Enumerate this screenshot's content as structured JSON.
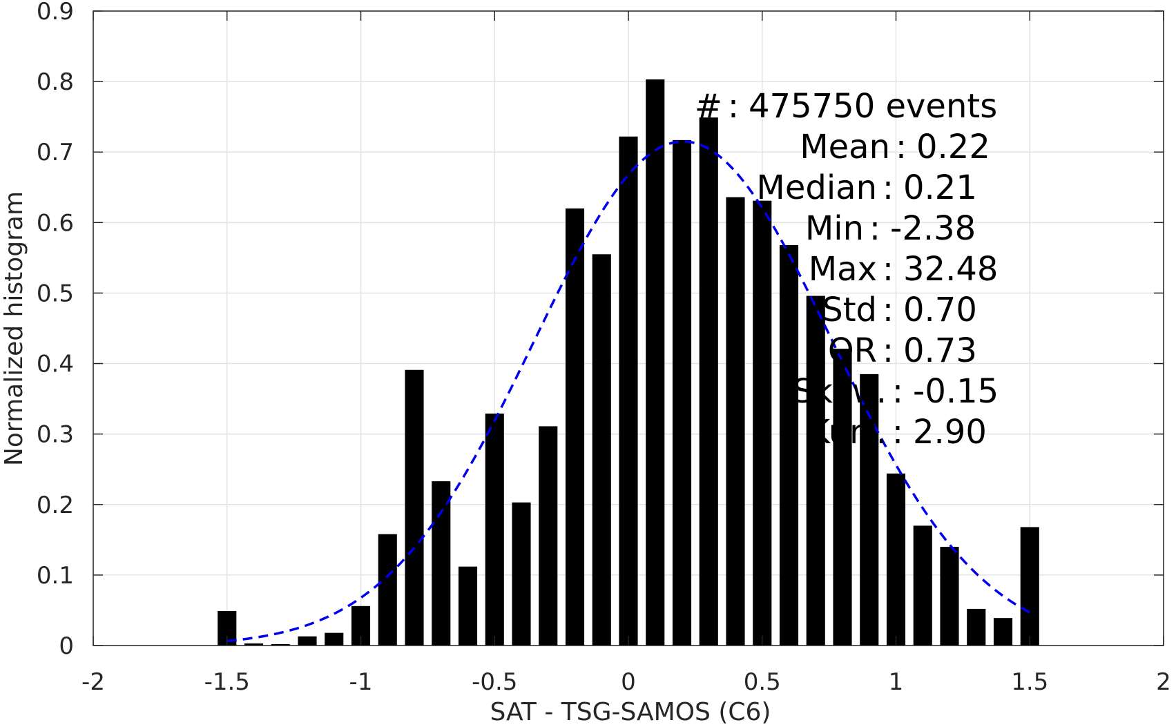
{
  "chart_data": {
    "type": "bar",
    "xlabel": "SAT - TSG-SAMOS (C6)",
    "ylabel": "Normalized histogram",
    "xlim": [
      -2,
      2
    ],
    "ylim": [
      0,
      0.9
    ],
    "xticks": [
      -2,
      -1.5,
      -1,
      -0.5,
      0,
      0.5,
      1,
      1.5,
      2
    ],
    "xtick_labels": [
      "-2",
      "-1.5",
      "-1",
      "-0.5",
      "0",
      "0.5",
      "1",
      "1.5",
      "2"
    ],
    "yticks": [
      0,
      0.1,
      0.2,
      0.3,
      0.4,
      0.5,
      0.6,
      0.7,
      0.8,
      0.9
    ],
    "ytick_labels": [
      "0",
      "0.1",
      "0.2",
      "0.3",
      "0.4",
      "0.5",
      "0.6",
      "0.7",
      "0.8",
      "0.9"
    ],
    "grid": true,
    "bar_color": "#000000",
    "bar_width": 0.07,
    "series": [
      {
        "x": [
          -1.5,
          -1.4,
          -1.3,
          -1.2,
          -1.1,
          -1.0,
          -0.9,
          -0.8,
          -0.7,
          -0.6,
          -0.5,
          -0.4,
          -0.3,
          -0.2,
          -0.1,
          0.0,
          0.1,
          0.2,
          0.3,
          0.4,
          0.5,
          0.6,
          0.7,
          0.8,
          0.9,
          1.0,
          1.1,
          1.2,
          1.3,
          1.4,
          1.5
        ],
        "values": [
          0.049,
          0.003,
          0.002,
          0.013,
          0.018,
          0.056,
          0.158,
          0.391,
          0.233,
          0.112,
          0.329,
          0.203,
          0.311,
          0.62,
          0.555,
          0.722,
          0.803,
          0.717,
          0.749,
          0.636,
          0.631,
          0.568,
          0.496,
          0.421,
          0.385,
          0.244,
          0.17,
          0.14,
          0.052,
          0.039,
          0.168
        ]
      }
    ],
    "fit_curve": {
      "style": "dashed",
      "color": "#0000ee",
      "mean": 0.205,
      "std": 0.555,
      "peak": 0.715,
      "x_range": [
        -1.5,
        1.5
      ]
    },
    "stats": [
      {
        "label": "#",
        "separator": ":",
        "value": "475750 events"
      },
      {
        "label": "Mean",
        "separator": ":",
        "value": "0.22"
      },
      {
        "label": "Median",
        "separator": ":",
        "value": "0.21"
      },
      {
        "label": "Min",
        "separator": ":",
        "value": "-2.38"
      },
      {
        "label": "Max",
        "separator": ":",
        "value": "32.48"
      },
      {
        "label": "Std",
        "separator": ":",
        "value": "0.70"
      },
      {
        "label": "IQR",
        "separator": ":",
        "value": "0.73"
      },
      {
        "label": "Skew.",
        "separator": ":",
        "value": "-0.15"
      },
      {
        "label": "Kurt.",
        "separator": ":",
        "value": "2.90"
      }
    ]
  }
}
